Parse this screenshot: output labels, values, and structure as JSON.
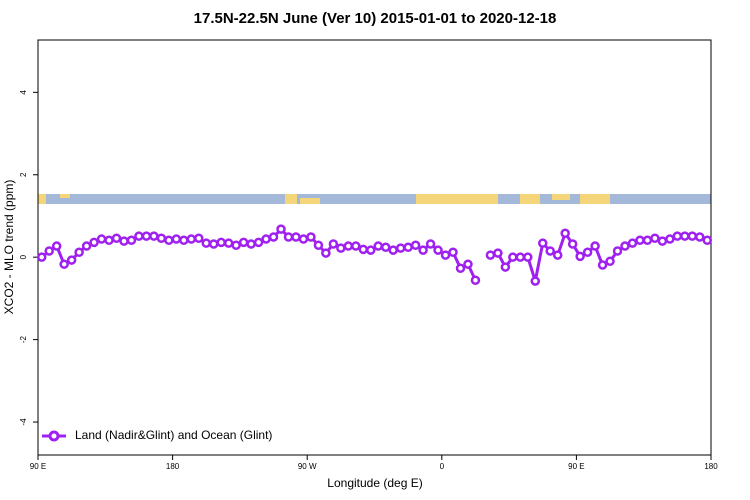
{
  "chart_data": {
    "type": "line",
    "title": "17.5N-22.5N June (Ver 10)   2015-01-01 to 2020-12-18",
    "x_label": "Longitude (deg E)",
    "y_label": "XCO2 - MLO trend (ppm)",
    "xlim": [
      90,
      540
    ],
    "ylim": [
      -4.8,
      5.27
    ],
    "xticks": [
      {
        "value": 90,
        "label": "90 E"
      },
      {
        "value": 180,
        "label": "180"
      },
      {
        "value": 270,
        "label": "90 W"
      },
      {
        "value": 360,
        "label": "0"
      },
      {
        "value": 450,
        "label": "90 E"
      },
      {
        "value": 540,
        "label": "180"
      }
    ],
    "yticks": [
      -4,
      -2,
      0,
      2,
      4
    ],
    "legend": "bottom-left",
    "x": [
      92.5,
      97.5,
      102.5,
      107.5,
      112.5,
      117.5,
      122.5,
      127.5,
      132.5,
      137.5,
      142.5,
      147.5,
      152.5,
      157.5,
      162.5,
      167.5,
      172.5,
      177.5,
      182.5,
      187.5,
      192.5,
      197.5,
      202.5,
      207.5,
      212.5,
      217.5,
      222.5,
      227.5,
      232.5,
      237.5,
      242.5,
      247.5,
      252.5,
      257.5,
      262.5,
      267.5,
      272.5,
      277.5,
      282.5,
      287.5,
      292.5,
      297.5,
      302.5,
      307.5,
      312.5,
      317.5,
      322.5,
      327.5,
      332.5,
      337.5,
      342.5,
      347.5,
      352.5,
      357.5,
      362.5,
      367.5,
      372.5,
      377.5,
      382.5,
      387.5,
      392.5,
      397.5,
      402.5,
      407.5,
      412.5,
      417.5,
      422.5,
      427.5,
      432.5,
      437.5,
      442.5,
      447.5,
      452.5,
      457.5,
      462.5,
      467.5,
      472.5,
      477.5,
      482.5,
      487.5,
      492.5,
      497.5,
      502.5,
      507.5,
      512.5,
      517.5,
      522.5,
      527.5,
      532.5,
      537.5
    ],
    "series": [
      {
        "name": "Land (Nadir&Glint) and Ocean (Glint)",
        "color": "#a020f0",
        "values": [
          0.0,
          0.15,
          0.27,
          -0.17,
          -0.07,
          0.12,
          0.27,
          0.36,
          0.44,
          0.41,
          0.46,
          0.39,
          0.41,
          0.51,
          0.51,
          0.51,
          0.46,
          0.41,
          0.44,
          0.41,
          0.44,
          0.46,
          0.34,
          0.32,
          0.36,
          0.34,
          0.29,
          0.36,
          0.32,
          0.36,
          0.44,
          0.49,
          0.68,
          0.49,
          0.49,
          0.44,
          0.49,
          0.29,
          0.1,
          0.32,
          0.22,
          0.27,
          0.27,
          0.19,
          0.17,
          0.27,
          0.24,
          0.17,
          0.22,
          0.24,
          0.29,
          0.17,
          0.32,
          0.17,
          0.05,
          0.12,
          -0.27,
          -0.17,
          -0.56,
          null,
          0.05,
          0.1,
          -0.24,
          0.0,
          0.0,
          0.0,
          -0.58,
          0.34,
          0.15,
          0.05,
          0.58,
          0.32,
          0.02,
          0.12,
          0.27,
          -0.19,
          -0.1,
          0.15,
          0.27,
          0.34,
          0.41,
          0.41,
          0.46,
          0.39,
          0.44,
          0.51,
          0.51,
          0.51,
          0.49,
          0.41
        ]
      }
    ]
  }
}
